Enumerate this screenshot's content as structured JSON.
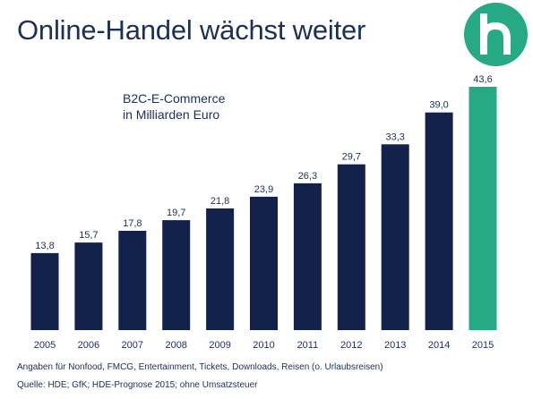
{
  "title": "Online-Handel wächst weiter",
  "logo": {
    "icon": "h-logo-icon",
    "color": "#26a985"
  },
  "chart_data": {
    "type": "bar",
    "title": "B2C-E-Commerce",
    "subtitle": "in Milliarden Euro",
    "categories": [
      "2005",
      "2006",
      "2007",
      "2008",
      "2009",
      "2010",
      "2011",
      "2012",
      "2013",
      "2014",
      "2015"
    ],
    "values": [
      13.8,
      15.7,
      17.8,
      19.7,
      21.8,
      23.9,
      26.3,
      29.7,
      33.3,
      39.0,
      43.6
    ],
    "value_labels": [
      "13,8",
      "15,7",
      "17,8",
      "19,7",
      "21,8",
      "23,9",
      "26,3",
      "29,7",
      "33,3",
      "39,0",
      "43,6"
    ],
    "ylim": [
      0,
      43.6
    ],
    "grid": false,
    "colors": {
      "actual": "#13224b",
      "forecast": "#26a985"
    },
    "forecast_categories": [
      "2015"
    ]
  },
  "footnotes": [
    "Angaben für Nonfood, FMCG, Entertainment, Tickets, Downloads, Reisen (o. Urlaubsreisen)",
    "Quelle: HDE; GfK; HDE-Prognose 2015; ohne Umsatzsteuer"
  ]
}
